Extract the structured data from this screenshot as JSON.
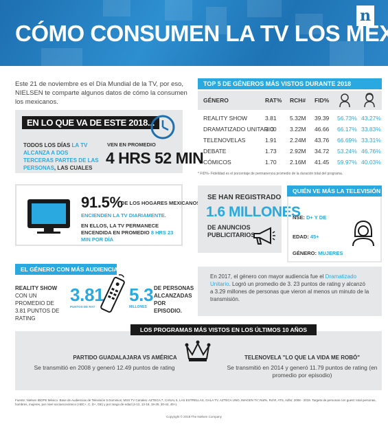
{
  "header": {
    "title": "CÓMO CONSUMEN LA TV LOS MEXICANOS",
    "logo": "n",
    "colors": {
      "primary": "#1d6fb0",
      "accent": "#29a9e0",
      "dark": "#1a1a1a",
      "panel": "#e6e7e8"
    }
  },
  "intro": {
    "text": "Este 21 de noviembre es el Día Mundial de la TV, por eso, NIELSEN te comparte algunos datos de cómo la consumen los mexicanos."
  },
  "average": {
    "title": "EN LO QUE VA DE ESTE 2018...",
    "text_a": "TODOS LOS DÍAS ",
    "text_b": "LA TV ALCANZA A DOS TERCERAS PARTES DE LAS PERSONAS",
    "text_c": ", LAS CUALES",
    "label": "VEN EN PROMEDIO",
    "value": "4 HRS 52 MIN",
    "icon": "clock-icon"
  },
  "top_genres": {
    "banner": "TOP 5 DE GÉNEROS MÁS VISTOS DURANTE 2018",
    "headers": [
      "GÉNERO",
      "RAT%",
      "RCH#",
      "FID%"
    ],
    "icons": [
      "male-icon",
      "female-icon"
    ],
    "rows": [
      {
        "genre": "REALITY SHOW",
        "rat": "3.81",
        "rch": "5.32M",
        "fid": "39.39",
        "male": "56.73%",
        "female": "43.27%"
      },
      {
        "genre": "DRAMATIZADO UNITARIO",
        "rat": "3.00",
        "rch": "3.22M",
        "fid": "46.66",
        "male": "66.17%",
        "female": "33.83%"
      },
      {
        "genre": "TELENOVELAS",
        "rat": "1.91",
        "rch": "2.24M",
        "fid": "43.76",
        "male": "66.69%",
        "female": "33.31%"
      },
      {
        "genre": "DEBATE",
        "rat": "1.73",
        "rch": "2.92M",
        "fid": "34.72",
        "male": "53.24%",
        "female": "46.76%"
      },
      {
        "genre": "CÓMICOS",
        "rat": "1.70",
        "rch": "2.16M",
        "fid": "41.45",
        "male": "59.97%",
        "female": "40.03%"
      }
    ],
    "footnote": "* FID%- Fidelidad es el porcentaje de permanencia promedio de la duración total del programa."
  },
  "households": {
    "pct": "91.5%",
    "line1": "DE LOS HOGARES MEXICANOS",
    "line2": "ENCIENDEN LA TV DIARIAMENTE.",
    "line3_a": "EN ELLOS, LA TV PERMANECE ENCENDIDA EN PROMEDIO ",
    "line3_b": "8 HRS 23 MIN POR DÍA",
    "icon": "tv-icon"
  },
  "ads": {
    "line1": "SE HAN REGISTRADO",
    "value": "1.6 MILLONES",
    "line2": "DE ANUNCIOS PUBLICITARIOS",
    "icon": "megaphone-icon"
  },
  "audience": {
    "banner": "QUIÉN VE MÁS LA TELEVISIÓN",
    "nse_label": "NSE: ",
    "nse_value": "D+ Y DE",
    "age_label": "EDAD: ",
    "age_value": "45+",
    "gender_label": "GÉNERO: ",
    "gender_value": "MUJERES",
    "icon": "woman-icon"
  },
  "genre_audience": {
    "banner": "EL GÉNERO CON MÁS AUDIENCIA ES",
    "left_a": "REALITY SHOW",
    "left_b": " CON UN PROMEDIO DE 3.81 PUNTOS DE RATING",
    "value1": "3.81",
    "sub1": "PUNTOS DE RAT",
    "value2": "5.3",
    "sub2": "MILLONES",
    "right": "DE PERSONAS ALCANZADAS POR EPISODIO.",
    "icon": "remote-control-icon"
  },
  "year2017": {
    "text_a": "En 2017, el género con mayor audiencia fue el ",
    "text_b": "Dramatizado Unitario",
    "text_c": ". Logró un promedio de 3. 23 puntos de rating y alcanzó a 3.29 millones de personas que vieron al menos un minuto de la transmisión."
  },
  "most_watched": {
    "title": "LOS PROGRAMAS MÁS VISTOS EN LOS ÚLTIMOS 10 AÑOS",
    "left_title": "PARTIDO GUADALAJARA VS AMÉRICA",
    "left_body": "Se transmitió en 2008 y generó 12.49 puntos de rating",
    "right_title": "TELENOVELA \"LO QUE LA VIDA ME ROBÓ\"",
    "right_body": "Se transmitió en 2014 y generó 11.79 puntos de rating (en promedio por episodio)",
    "icon": "crown-icon"
  },
  "source": "Fuente: Nielsen IBOPE México. Base de Audiencias de Televisión 5 Dominios; MSS TV Canales: AZTECA 7, CANAL 5, LAS ESTRELLAS, GALA TV, AZTECA UNO, IMAGEN TV; Rat%, Rch#, ATS, Adhs; 2008 - 2018. Targets de personas con guest: total personas, hombres, mujeres, por nivel socioeconómico (ABC+, C, D+, DE) y por rango de edad (4-12, 13-18, 19-29, 30-44, 45+).",
  "copyright": "Copyright © 2018 The Nielsen Company"
}
